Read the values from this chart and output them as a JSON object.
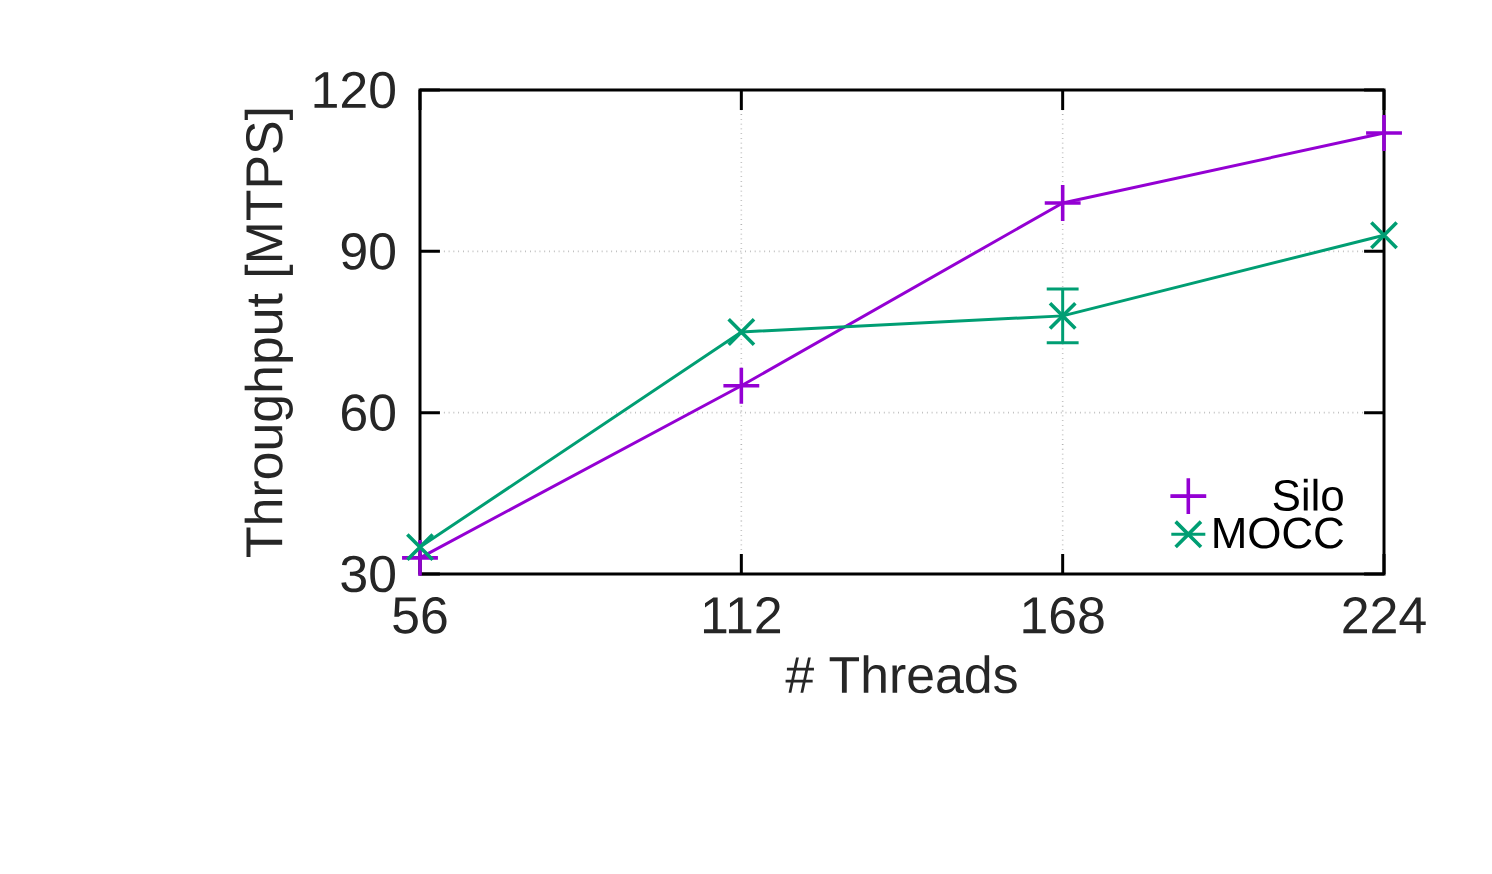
{
  "chart_data": {
    "type": "line",
    "xlabel": "# Threads",
    "ylabel": "Throughput [MTPS]",
    "x": [
      56,
      112,
      168,
      224
    ],
    "series": [
      {
        "name": "Silo",
        "color": "#9400d3",
        "marker": "cross",
        "values": [
          33,
          65,
          99,
          112
        ]
      },
      {
        "name": "MOCC",
        "color": "#009e73",
        "marker": "x",
        "values": [
          35,
          75,
          78,
          93
        ],
        "errors": [
          null,
          null,
          5,
          null
        ]
      }
    ],
    "xlim": [
      56,
      224
    ],
    "ylim": [
      30,
      120
    ],
    "xticks": [
      56,
      112,
      168,
      224
    ],
    "yticks": [
      30,
      60,
      90,
      120
    ],
    "grid": true,
    "legend": "bottom right"
  }
}
